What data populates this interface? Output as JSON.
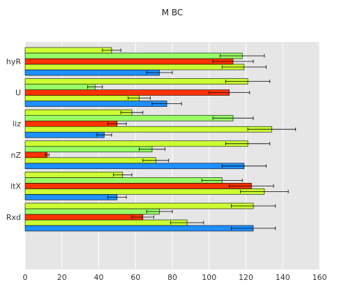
{
  "chart_data": {
    "type": "bar",
    "orientation": "horizontal",
    "title": "M BC",
    "xlabel": "",
    "ylabel": "",
    "xlim": [
      0,
      160
    ],
    "xticks": [
      0,
      20,
      40,
      60,
      80,
      100,
      120,
      140,
      160
    ],
    "grid": true,
    "legend": "none",
    "background": "#e6e6e6",
    "grid_color": "#ffffff",
    "categories": [
      "Rxd",
      "ltX",
      "nZ",
      "liz",
      "U",
      "hyR"
    ],
    "bars": [
      {
        "category": "Rxd",
        "value": 124,
        "error": 12,
        "color": "#1e90ff"
      },
      {
        "category": "Rxd",
        "value": 88,
        "error": 9,
        "color": "#ccff33"
      },
      {
        "category": "Rxd",
        "value": 64,
        "error": 6,
        "color": "#ff3300"
      },
      {
        "category": "Rxd",
        "value": 73,
        "error": 7,
        "color": "#99ff66"
      },
      {
        "category": "Rxd",
        "value": 124,
        "error": 12,
        "color": "#ccff33"
      },
      {
        "category": "ltX",
        "value": 50,
        "error": 5,
        "color": "#1e90ff"
      },
      {
        "category": "ltX",
        "value": 130,
        "error": 13,
        "color": "#ccff33"
      },
      {
        "category": "ltX",
        "value": 123,
        "error": 12,
        "color": "#ff3300"
      },
      {
        "category": "ltX",
        "value": 107,
        "error": 11,
        "color": "#99ff66"
      },
      {
        "category": "ltX",
        "value": 53,
        "error": 5,
        "color": "#ccff33"
      },
      {
        "category": "nZ",
        "value": 119,
        "error": 12,
        "color": "#1e90ff"
      },
      {
        "category": "nZ",
        "value": 71,
        "error": 7,
        "color": "#ccff33"
      },
      {
        "category": "nZ",
        "value": 12,
        "error": 1,
        "color": "#ff3300"
      },
      {
        "category": "nZ",
        "value": 69,
        "error": 7,
        "color": "#99ff66"
      },
      {
        "category": "nZ",
        "value": 121,
        "error": 12,
        "color": "#ccff33"
      },
      {
        "category": "liz",
        "value": 43,
        "error": 4,
        "color": "#1e90ff"
      },
      {
        "category": "liz",
        "value": 134,
        "error": 13,
        "color": "#ccff33"
      },
      {
        "category": "liz",
        "value": 50,
        "error": 5,
        "color": "#ff3300"
      },
      {
        "category": "liz",
        "value": 113,
        "error": 11,
        "color": "#99ff66"
      },
      {
        "category": "liz",
        "value": 58,
        "error": 6,
        "color": "#ccff33"
      },
      {
        "category": "U",
        "value": 77,
        "error": 8,
        "color": "#1e90ff"
      },
      {
        "category": "U",
        "value": 62,
        "error": 6,
        "color": "#ccff33"
      },
      {
        "category": "U",
        "value": 111,
        "error": 11,
        "color": "#ff3300"
      },
      {
        "category": "U",
        "value": 38,
        "error": 4,
        "color": "#99ff66"
      },
      {
        "category": "U",
        "value": 121,
        "error": 12,
        "color": "#ccff33"
      },
      {
        "category": "hyR",
        "value": 73,
        "error": 7,
        "color": "#1e90ff"
      },
      {
        "category": "hyR",
        "value": 119,
        "error": 12,
        "color": "#ccff33"
      },
      {
        "category": "hyR",
        "value": 113,
        "error": 11,
        "color": "#ff3300"
      },
      {
        "category": "hyR",
        "value": 118,
        "error": 12,
        "color": "#99ff66"
      },
      {
        "category": "hyR",
        "value": 47,
        "error": 5,
        "color": "#ccff33"
      }
    ]
  }
}
